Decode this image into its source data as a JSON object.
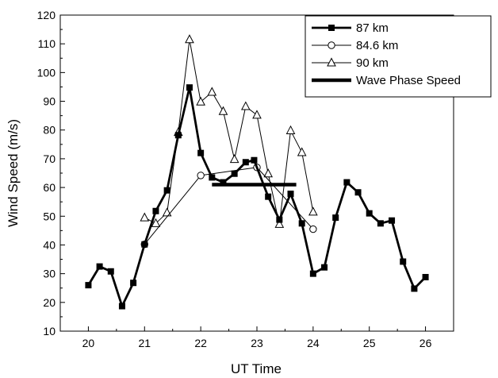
{
  "chart_data": {
    "type": "line",
    "title": "",
    "xlabel": "UT Time",
    "ylabel": "Wind Speed (m/s)",
    "xlim": [
      19.5,
      26.5
    ],
    "ylim": [
      10,
      120
    ],
    "x_ticks": [
      20,
      21,
      22,
      23,
      24,
      25,
      26
    ],
    "y_ticks": [
      10,
      20,
      30,
      40,
      50,
      60,
      70,
      80,
      90,
      100,
      110,
      120
    ],
    "legend_position": "top-right",
    "grid": false,
    "series": [
      {
        "name": "87 km",
        "marker": "filled-square",
        "line": "thick",
        "color": "#000000",
        "points": [
          [
            20.0,
            26
          ],
          [
            20.2,
            32.5
          ],
          [
            20.4,
            30.8
          ],
          [
            20.6,
            18.7
          ],
          [
            20.8,
            26.8
          ],
          [
            21.0,
            40.2
          ],
          [
            21.2,
            51.8
          ],
          [
            21.4,
            59
          ],
          [
            21.6,
            78.2
          ],
          [
            21.8,
            94.8
          ],
          [
            22.0,
            72
          ],
          [
            22.2,
            63.5
          ],
          [
            22.4,
            61.8
          ],
          [
            22.6,
            64.8
          ],
          [
            22.8,
            68.8
          ],
          [
            22.95,
            69.5
          ],
          [
            23.2,
            56.8
          ],
          [
            23.4,
            48.8
          ],
          [
            23.6,
            57.8
          ],
          [
            23.8,
            47.5
          ],
          [
            24.0,
            30
          ],
          [
            24.2,
            32.2
          ],
          [
            24.4,
            49.5
          ],
          [
            24.6,
            61.8
          ],
          [
            24.8,
            58.3
          ],
          [
            25.0,
            51
          ],
          [
            25.2,
            47.5
          ],
          [
            25.4,
            48.5
          ],
          [
            25.6,
            34.2
          ],
          [
            25.8,
            24.8
          ],
          [
            26.0,
            28.8
          ]
        ]
      },
      {
        "name": "84.6 km",
        "marker": "open-circle",
        "line": "thin",
        "color": "#000000",
        "points": [
          [
            21.0,
            40.2
          ],
          [
            22.0,
            64.2
          ],
          [
            23.0,
            67
          ],
          [
            24.0,
            45.5
          ]
        ]
      },
      {
        "name": "90 km",
        "marker": "open-triangle",
        "line": "thin",
        "color": "#000000",
        "points": [
          [
            21.0,
            49.5
          ],
          [
            21.2,
            47.5
          ],
          [
            21.4,
            51.2
          ],
          [
            21.6,
            79.2
          ],
          [
            21.8,
            111.5
          ],
          [
            22.0,
            89.8
          ],
          [
            22.2,
            93.2
          ],
          [
            22.4,
            86.5
          ],
          [
            22.6,
            69.8
          ],
          [
            22.8,
            88.2
          ],
          [
            23.0,
            85.2
          ],
          [
            23.2,
            64.8
          ],
          [
            23.4,
            47.2
          ],
          [
            23.6,
            79.8
          ],
          [
            23.8,
            72.2
          ],
          [
            24.0,
            51.5
          ]
        ]
      },
      {
        "name": "Wave Phase Speed",
        "marker": "none",
        "line": "very-thick",
        "color": "#000000",
        "points": [
          [
            22.2,
            61
          ],
          [
            23.7,
            61
          ]
        ]
      }
    ]
  }
}
